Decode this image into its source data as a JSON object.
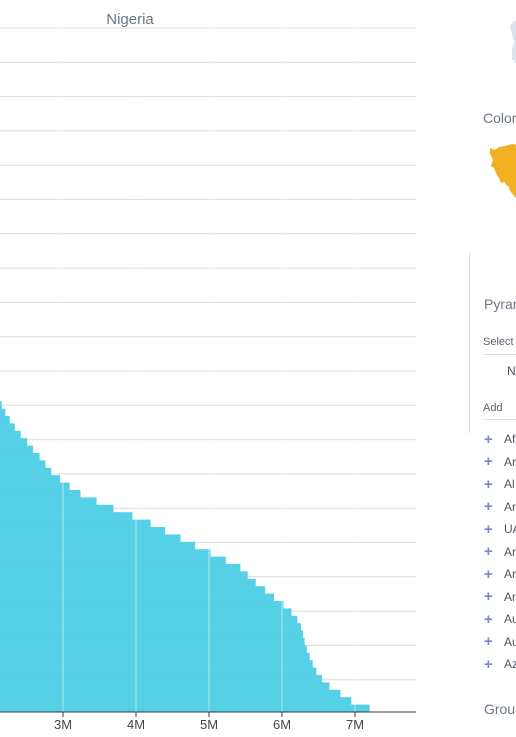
{
  "chart_data": {
    "type": "bar",
    "orientation": "horizontal",
    "title": "Nigeria",
    "xlabel": "",
    "ylabel": "",
    "x_tick_labels": [
      "3M",
      "4M",
      "5M",
      "6M",
      "7M"
    ],
    "x_ticks": [
      3000000,
      4000000,
      5000000,
      6000000,
      7000000
    ],
    "grid": true,
    "bar_color": "#55d0e6",
    "series": [
      {
        "values": [
          7200000,
          6950000,
          6800000,
          6650000,
          6550000,
          6470000,
          6420000,
          6380000,
          6340000,
          6310000,
          6290000,
          6260000,
          6210000,
          6130000,
          6020000,
          5890000,
          5770000,
          5640000,
          5530000,
          5430000,
          5230000,
          5020000,
          4810000,
          4610000,
          4400000,
          4200000,
          3950000,
          3690000,
          3460000,
          3240000,
          3090000,
          2960000,
          2840000,
          2760000,
          2680000,
          2590000,
          2510000,
          2420000,
          2340000,
          2270000,
          2210000,
          2160000,
          2120000
        ]
      }
    ]
  },
  "sidebar": {
    "color_label": "Color",
    "pyramid_label": "Pyram",
    "select_label": "Select",
    "select_value": "N",
    "add_label": "Add",
    "group_label": "Grou",
    "countries": [
      "Af",
      "Ar",
      "Al",
      "Ar",
      "UA",
      "Ar",
      "Ar",
      "Ar",
      "Au",
      "Au",
      "Az"
    ]
  },
  "colors": {
    "accent": "#7a85d0",
    "map_yellow": "#f1b123"
  }
}
